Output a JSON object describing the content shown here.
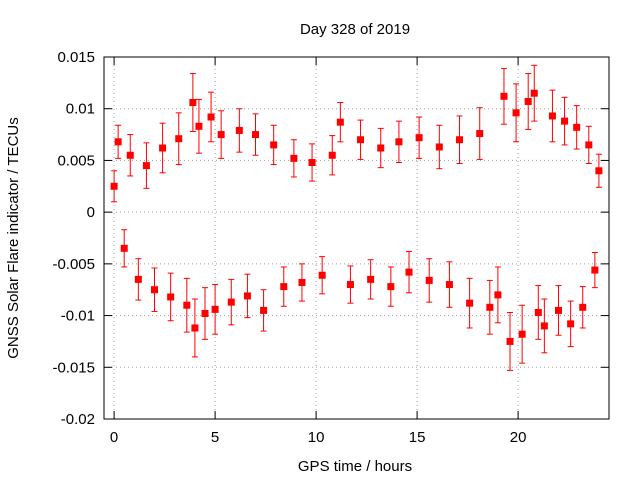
{
  "chart_data": {
    "type": "scatter",
    "title": "Day 328 of 2019",
    "xlabel": "GPS time / hours",
    "ylabel": "GNSS Solar Flare indicator / TECUs",
    "xlim": [
      -0.5,
      24.5
    ],
    "ylim": [
      -0.02,
      0.015
    ],
    "xticks": [
      0,
      5,
      10,
      15,
      20
    ],
    "xtick_labels": [
      "0",
      "5",
      "10",
      "15",
      "20"
    ],
    "yticks": [
      0.015,
      0.01,
      0.005,
      0,
      -0.005,
      -0.01,
      -0.015,
      -0.02
    ],
    "ytick_labels": [
      "0.015",
      "0.01",
      "0.005",
      "0",
      "-0.005",
      "-0.01",
      "-0.015",
      "-0.02"
    ],
    "grid": true,
    "series": [
      {
        "name": "solar flare indicator",
        "color": "#ff0000",
        "marker": "square",
        "error_bars": true,
        "x": [
          0.0,
          0.2,
          0.5,
          0.8,
          1.2,
          1.6,
          2.0,
          2.4,
          2.8,
          3.2,
          3.6,
          3.9,
          4.0,
          4.2,
          4.5,
          4.8,
          5.0,
          5.3,
          5.8,
          6.2,
          6.6,
          7.0,
          7.4,
          7.9,
          8.4,
          8.9,
          9.3,
          9.8,
          10.3,
          10.8,
          11.2,
          11.7,
          12.2,
          12.7,
          13.2,
          13.7,
          14.1,
          14.6,
          15.1,
          15.6,
          16.1,
          16.6,
          17.1,
          17.6,
          18.1,
          18.6,
          19.0,
          19.3,
          19.6,
          19.9,
          20.2,
          20.5,
          20.8,
          21.0,
          21.3,
          21.7,
          22.0,
          22.3,
          22.6,
          22.9,
          23.2,
          23.5,
          23.8,
          24.0
        ],
        "values": [
          0.0025,
          0.0068,
          -0.0035,
          0.0055,
          -0.0065,
          0.0045,
          -0.0075,
          0.0062,
          -0.0082,
          0.0071,
          -0.009,
          0.0106,
          -0.0112,
          0.0083,
          -0.0098,
          0.0092,
          -0.0094,
          0.0075,
          -0.0087,
          0.0079,
          -0.0081,
          0.0075,
          -0.0095,
          0.0065,
          -0.0072,
          0.0052,
          -0.0068,
          0.0048,
          -0.0061,
          0.0055,
          0.0087,
          -0.007,
          0.007,
          -0.0065,
          0.0062,
          -0.0072,
          0.0068,
          -0.0058,
          0.0072,
          -0.0066,
          0.0063,
          -0.007,
          0.007,
          -0.0088,
          0.0076,
          -0.0092,
          -0.008,
          0.0112,
          -0.0125,
          0.0096,
          -0.0118,
          0.0107,
          0.0115,
          -0.0097,
          -0.011,
          0.0093,
          -0.0095,
          0.0088,
          -0.0108,
          0.0082,
          -0.0092,
          0.0065,
          -0.0056,
          0.004
        ],
        "errors": [
          0.0015,
          0.0016,
          0.0018,
          0.002,
          0.002,
          0.0022,
          0.0021,
          0.0024,
          0.0023,
          0.0025,
          0.0026,
          0.0028,
          0.0028,
          0.0026,
          0.0025,
          0.0024,
          0.0024,
          0.0023,
          0.0022,
          0.0021,
          0.0021,
          0.002,
          0.002,
          0.0019,
          0.0019,
          0.0018,
          0.0018,
          0.0018,
          0.0018,
          0.0019,
          0.0019,
          0.0018,
          0.0019,
          0.0019,
          0.0019,
          0.0019,
          0.002,
          0.002,
          0.002,
          0.0021,
          0.0021,
          0.0022,
          0.0023,
          0.0024,
          0.0025,
          0.0026,
          0.0027,
          0.0027,
          0.0028,
          0.0028,
          0.0028,
          0.0027,
          0.0027,
          0.0026,
          0.0026,
          0.0025,
          0.0024,
          0.0023,
          0.0022,
          0.0021,
          0.002,
          0.0018,
          0.0017,
          0.0016
        ]
      }
    ]
  }
}
